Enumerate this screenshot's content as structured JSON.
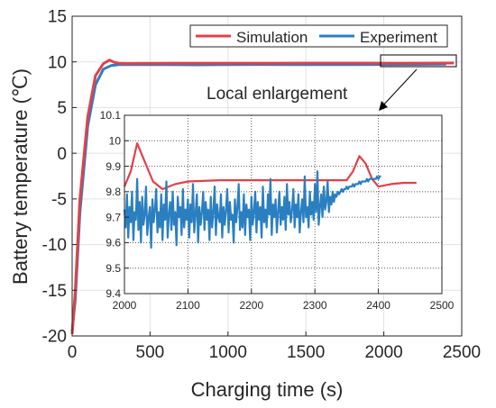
{
  "chart_data": [
    {
      "type": "line",
      "panel": "main",
      "xlabel": "Charging time (s)",
      "ylabel": "Battery temperature (℃)",
      "xlim": [
        0,
        2500
      ],
      "ylim": [
        -20,
        15
      ],
      "xticks": [
        0,
        500,
        1000,
        1500,
        2000,
        2500
      ],
      "yticks": [
        -20,
        -15,
        -10,
        -5,
        0,
        5,
        10,
        15
      ],
      "grid": true,
      "legend": "top-right",
      "series": [
        {
          "name": "Simulation",
          "color": "#e0414b",
          "x": [
            0,
            20,
            50,
            100,
            150,
            200,
            240,
            270,
            300,
            350,
            500,
            700,
            900,
            1100,
            1300,
            1500,
            1700,
            1900,
            2100,
            2300,
            2450
          ],
          "y": [
            -19.8,
            -15,
            -5,
            4,
            8.5,
            9.8,
            10.2,
            9.95,
            9.85,
            9.82,
            9.83,
            9.85,
            9.85,
            9.84,
            9.85,
            9.86,
            9.86,
            9.86,
            9.85,
            9.86,
            9.87
          ]
        },
        {
          "name": "Experiment",
          "color": "#2a7fc1",
          "x": [
            0,
            20,
            50,
            100,
            150,
            200,
            250,
            300,
            400,
            600,
            800,
            1000,
            1200,
            1400,
            1600,
            1800,
            2000,
            2200,
            2400
          ],
          "y": [
            -19.5,
            -16,
            -6.5,
            3,
            7.5,
            9.2,
            9.6,
            9.7,
            9.7,
            9.7,
            9.68,
            9.7,
            9.72,
            9.7,
            9.7,
            9.71,
            9.72,
            9.73,
            9.75
          ]
        }
      ]
    },
    {
      "type": "line",
      "panel": "inset",
      "title": "Local enlargement",
      "xlim": [
        2000,
        2500
      ],
      "ylim": [
        9.4,
        10.1
      ],
      "xticks": [
        2000,
        2100,
        2200,
        2300,
        2400,
        2500
      ],
      "yticks": [
        9.4,
        9.5,
        9.6,
        9.7,
        9.8,
        9.9,
        10,
        10.1
      ],
      "grid": true,
      "series": [
        {
          "name": "Simulation",
          "color": "#e0414b",
          "x": [
            2000,
            2010,
            2020,
            2030,
            2045,
            2060,
            2080,
            2100,
            2150,
            2200,
            2250,
            2300,
            2350,
            2360,
            2370,
            2380,
            2390,
            2400,
            2410,
            2420,
            2440,
            2460
          ],
          "y": [
            9.82,
            9.88,
            9.99,
            9.93,
            9.84,
            9.81,
            9.83,
            9.84,
            9.845,
            9.845,
            9.845,
            9.845,
            9.845,
            9.88,
            9.94,
            9.91,
            9.85,
            9.82,
            9.825,
            9.83,
            9.835,
            9.835
          ]
        },
        {
          "name": "Experiment",
          "color": "#2a7fc1",
          "x_start": 2000,
          "x_step": 2,
          "y": [
            9.73,
            9.66,
            9.79,
            9.62,
            9.74,
            9.68,
            9.8,
            9.61,
            9.72,
            9.69,
            9.85,
            9.65,
            9.76,
            9.6,
            9.78,
            9.67,
            9.71,
            9.82,
            9.63,
            9.7,
            9.74,
            9.58,
            9.77,
            9.68,
            9.73,
            9.81,
            9.64,
            9.72,
            9.66,
            9.79,
            9.61,
            9.75,
            9.69,
            9.84,
            9.62,
            9.71,
            9.76,
            9.65,
            9.8,
            9.67,
            9.72,
            9.59,
            9.78,
            9.7,
            9.74,
            9.63,
            9.81,
            9.66,
            9.73,
            9.69,
            9.77,
            9.62,
            9.75,
            9.68,
            9.83,
            9.64,
            9.71,
            9.79,
            9.6,
            9.74,
            9.67,
            9.72,
            9.8,
            9.65,
            9.76,
            9.69,
            9.73,
            9.61,
            9.78,
            9.66,
            9.72,
            9.82,
            9.63,
            9.75,
            9.7,
            9.68,
            9.79,
            9.62,
            9.74,
            9.67,
            9.73,
            9.81,
            9.64,
            9.76,
            9.69,
            9.71,
            9.6,
            9.77,
            9.68,
            9.74,
            9.83,
            9.65,
            9.72,
            9.66,
            9.79,
            9.63,
            9.75,
            9.7,
            9.73,
            9.61,
            9.78,
            9.67,
            9.72,
            9.8,
            9.64,
            9.76,
            9.69,
            9.74,
            9.62,
            9.82,
            9.68,
            9.73,
            9.66,
            9.79,
            9.71,
            9.85,
            9.63,
            9.75,
            9.7,
            9.77,
            9.64,
            9.72,
            9.8,
            9.67,
            9.74,
            9.69,
            9.78,
            9.65,
            9.83,
            9.71,
            9.76,
            9.68,
            9.73,
            9.81,
            9.66,
            9.75,
            9.7,
            9.79,
            9.64,
            9.72,
            9.77,
            9.68,
            9.86,
            9.7,
            9.74,
            9.66,
            9.8,
            9.71,
            9.76,
            9.69,
            9.83,
            9.72,
            9.88,
            9.67,
            9.74,
            9.79,
            9.7,
            9.82,
            9.73,
            9.76,
            9.84,
            9.72,
            9.78,
            9.75,
            9.8,
            9.76,
            9.79,
            9.78,
            9.8,
            9.79,
            9.8,
            9.81,
            9.8,
            9.81,
            9.81,
            9.82,
            9.81,
            9.82,
            9.82,
            9.82,
            9.83,
            9.82,
            9.83,
            9.83,
            9.83,
            9.84,
            9.83,
            9.84,
            9.84,
            9.84,
            9.84,
            9.85,
            9.84,
            9.85,
            9.85,
            9.85,
            9.85,
            9.85,
            9.85,
            9.86,
            9.85,
            9.86,
            9.86
          ]
        }
      ]
    }
  ],
  "annotation": {
    "text": "Local enlargement"
  }
}
